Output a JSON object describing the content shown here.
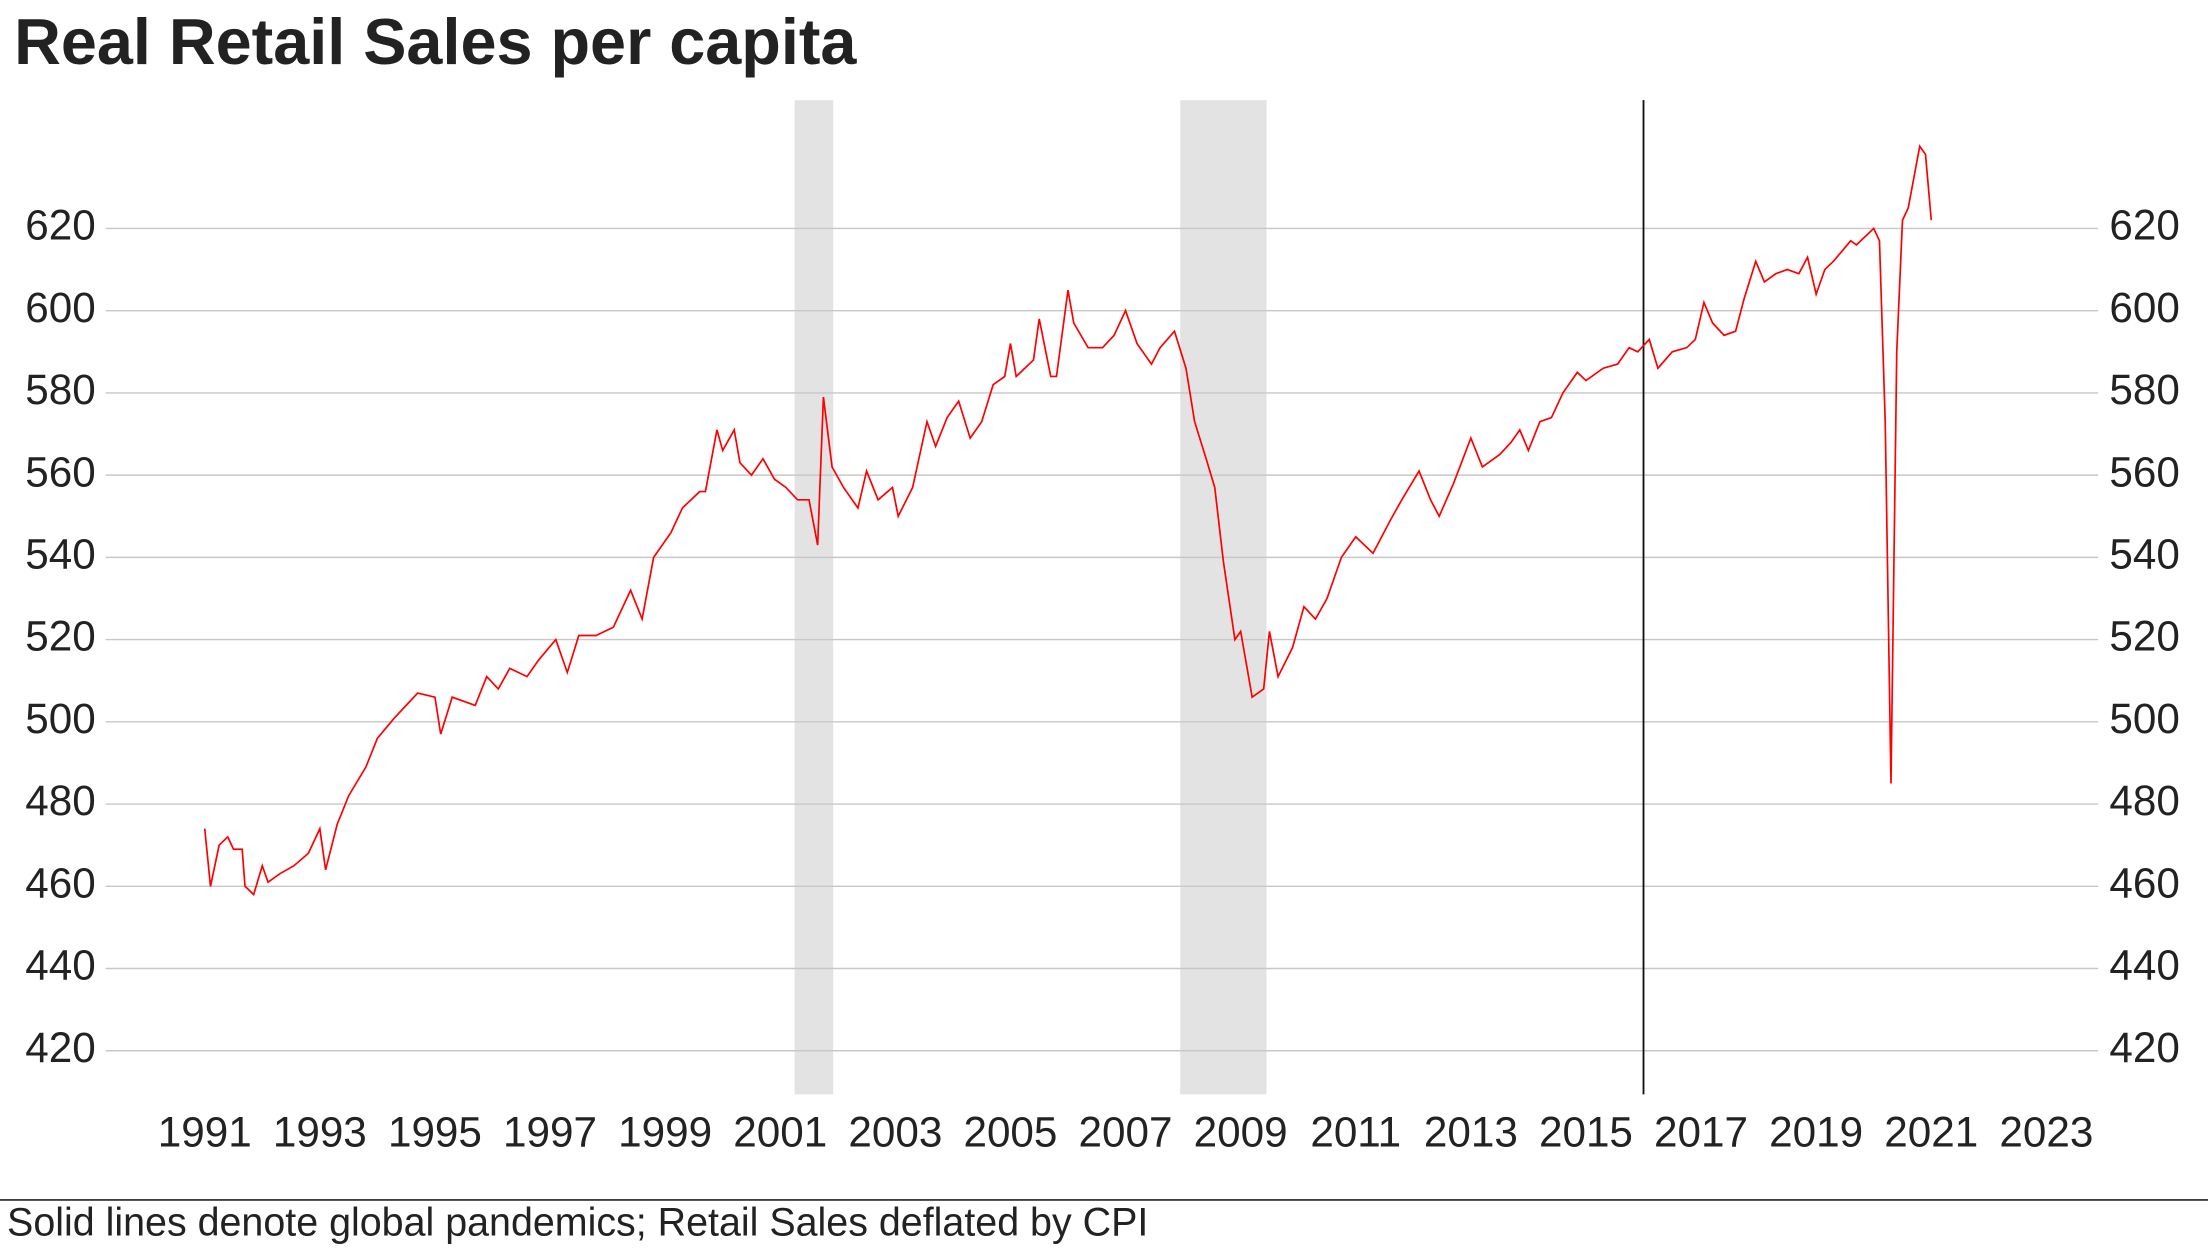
{
  "chart_data": {
    "type": "line",
    "title": "Real Retail Sales per capita",
    "note": "Solid lines denote global pandemics; Retail Sales deflated by CPI",
    "x": [
      1991.0,
      1991.1,
      1991.25,
      1991.4,
      1991.5,
      1991.65,
      1991.7,
      1991.85,
      1992.0,
      1992.1,
      1992.3,
      1992.55,
      1992.8,
      1993.0,
      1993.1,
      1993.3,
      1993.5,
      1993.8,
      1994.0,
      1994.3,
      1994.5,
      1994.7,
      1995.0,
      1995.1,
      1995.3,
      1995.7,
      1995.9,
      1996.1,
      1996.3,
      1996.6,
      1996.8,
      1997.1,
      1997.3,
      1997.5,
      1997.8,
      1998.1,
      1998.4,
      1998.6,
      1998.8,
      1999.1,
      1999.3,
      1999.6,
      1999.7,
      1999.9,
      2000.0,
      2000.2,
      2000.3,
      2000.5,
      2000.7,
      2000.9,
      2001.1,
      2001.3,
      2001.5,
      2001.65,
      2001.75,
      2001.9,
      2002.1,
      2002.35,
      2002.5,
      2002.7,
      2002.95,
      2003.05,
      2003.3,
      2003.55,
      2003.7,
      2003.9,
      2004.1,
      2004.3,
      2004.5,
      2004.7,
      2004.9,
      2005.0,
      2005.1,
      2005.4,
      2005.5,
      2005.7,
      2005.8,
      2006.0,
      2006.1,
      2006.35,
      2006.6,
      2006.8,
      2007.0,
      2007.2,
      2007.45,
      2007.6,
      2007.85,
      2008.05,
      2008.2,
      2008.4,
      2008.55,
      2008.7,
      2008.9,
      2009.0,
      2009.2,
      2009.4,
      2009.5,
      2009.65,
      2009.9,
      2010.1,
      2010.3,
      2010.5,
      2010.75,
      2011.0,
      2011.3,
      2011.6,
      2011.8,
      2012.1,
      2012.3,
      2012.45,
      2012.7,
      2013.0,
      2013.2,
      2013.5,
      2013.7,
      2013.85,
      2014.0,
      2014.2,
      2014.4,
      2014.6,
      2014.85,
      2015.0,
      2015.3,
      2015.55,
      2015.75,
      2015.9,
      2016.1,
      2016.25,
      2016.5,
      2016.75,
      2016.9,
      2017.05,
      2017.2,
      2017.4,
      2017.6,
      2017.75,
      2017.95,
      2018.1,
      2018.3,
      2018.5,
      2018.7,
      2018.85,
      2019.0,
      2019.15,
      2019.3,
      2019.6,
      2019.7,
      2020.0,
      2020.1,
      2020.2,
      2020.3,
      2020.4,
      2020.5,
      2020.6,
      2020.8,
      2020.9,
      2021.0
    ],
    "series": [
      {
        "color": "#ff0000",
        "values": [
          474,
          460,
          470,
          472,
          469,
          469,
          460,
          458,
          465,
          461,
          463,
          465,
          468,
          474,
          464,
          475,
          482,
          489,
          496,
          501,
          504,
          507,
          506,
          497,
          506,
          504,
          511,
          508,
          513,
          511,
          515,
          520,
          512,
          521,
          521,
          523,
          532,
          525,
          540,
          546,
          552,
          556,
          556,
          571,
          566,
          571,
          563,
          560,
          564,
          559,
          557,
          554,
          554,
          543,
          579,
          562,
          557,
          552,
          561,
          554,
          557,
          550,
          557,
          573,
          567,
          574,
          578,
          569,
          573,
          582,
          584,
          592,
          584,
          588,
          598,
          584,
          584,
          605,
          597,
          591,
          591,
          594,
          600,
          592,
          587,
          591,
          595,
          586,
          573,
          564,
          557,
          539,
          520,
          522,
          506,
          508,
          522,
          511,
          518,
          528,
          525,
          530,
          540,
          545,
          541,
          549,
          554,
          561,
          554,
          550,
          558,
          569,
          562,
          565,
          568,
          571,
          566,
          573,
          574,
          580,
          585,
          583,
          586,
          587,
          591,
          590,
          593,
          586,
          590,
          591,
          593,
          602,
          597,
          594,
          595,
          603,
          612,
          607,
          609,
          610,
          609,
          613,
          604,
          610,
          612,
          617,
          616,
          620,
          617,
          573,
          485,
          590,
          622,
          625,
          640,
          638,
          622
        ]
      }
    ],
    "recession_bands": [
      [
        2001.25,
        2001.92
      ],
      [
        2007.95,
        2009.45
      ]
    ],
    "pandemic_lines": [
      2016.0
    ],
    "xlim": [
      1989.4,
      2023.9
    ],
    "xticks": [
      1991,
      1993,
      1995,
      1997,
      1999,
      2001,
      2003,
      2005,
      2007,
      2009,
      2011,
      2013,
      2015,
      2017,
      2019,
      2021,
      2023
    ],
    "ylim": [
      409.4,
      651.2
    ],
    "yticks": [
      420,
      440,
      460,
      480,
      500,
      520,
      540,
      560,
      580,
      600,
      620
    ],
    "grid": true
  }
}
